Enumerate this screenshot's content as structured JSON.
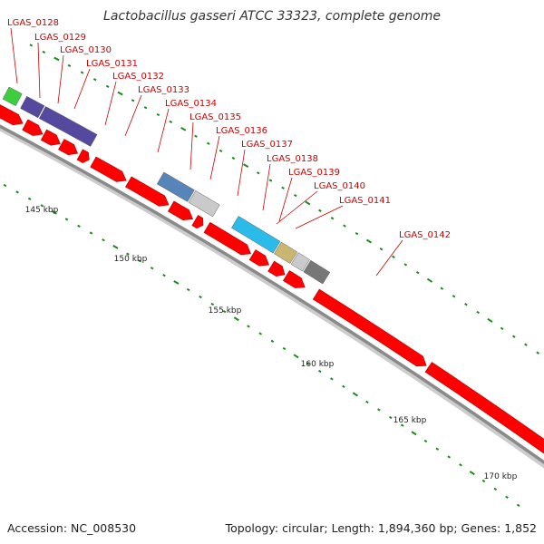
{
  "title": "Lactobacillus gasseri ATCC 33323, complete genome",
  "footer": {
    "accession": "Accession: NC_008530",
    "summary": "Topology: circular; Length: 1,894,360 bp; Genes: 1,852"
  },
  "colors": {
    "cds": "#ff0000",
    "backbone": "#888888",
    "tick": "#1a8a1a",
    "label": "#cc0000"
  },
  "kbp_labels": [
    "145 kbp",
    "150 kbp",
    "155 kbp",
    "160 kbp",
    "165 kbp",
    "170 kbp"
  ],
  "gene_labels": [
    "LGAS_0128",
    "LGAS_0129",
    "LGAS_0130",
    "LGAS_0131",
    "LGAS_0132",
    "LGAS_0133",
    "LGAS_0134",
    "LGAS_0135",
    "LGAS_0136",
    "LGAS_0137",
    "LGAS_0138",
    "LGAS_0139",
    "LGAS_0140",
    "LGAS_0141",
    "LGAS_0142"
  ]
}
